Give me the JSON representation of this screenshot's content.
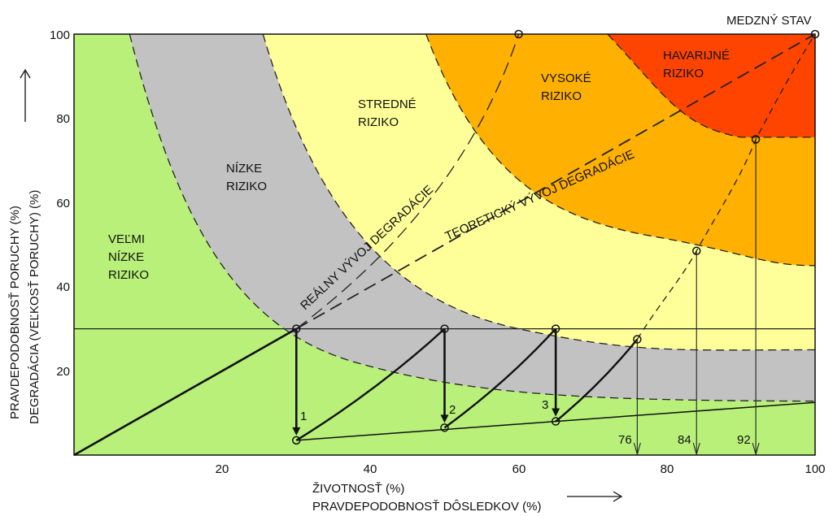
{
  "chart_data": {
    "type": "risk-matrix-diagram",
    "x_axis": {
      "title_line1": "ŽIVOTNOSŤ (%)",
      "title_line2": "PRAVDEPODOBNOSŤ DÔSLEDKOV (%)",
      "range": [
        0,
        100
      ],
      "ticks": [
        "20",
        "40",
        "60",
        "80",
        "100"
      ]
    },
    "y_axis": {
      "title_line1": "PRAVDEPODOBNOSŤ PORUCHY (%)",
      "title_line2": "DEGRADÁCIA (VEĽKOSŤ PORUCHY) (%)",
      "range": [
        0,
        100
      ],
      "ticks": [
        "20",
        "40",
        "60",
        "80",
        "100"
      ]
    },
    "zones": [
      {
        "label_line1": "VEĽMI",
        "label_line2": "NÍZKE",
        "label_line3": "RIZIKO",
        "color": "#b8f07a"
      },
      {
        "label_line1": "NÍZKE",
        "label_line2": "RIZIKO",
        "color": "#c2c2c2"
      },
      {
        "label_line1": "STREDNÉ",
        "label_line2": "RIZIKO",
        "color": "#ffff99"
      },
      {
        "label_line1": "VYSOKÉ",
        "label_line2": "RIZIKO",
        "color": "#ffb000"
      },
      {
        "label_line1": "HAVARIJNÉ",
        "label_line2": "RIZIKO",
        "color": "#ff4400"
      }
    ],
    "corner_label": "MEDZNÝ STAV",
    "real_degradation_label": "REÁLNY VÝVOJ DEGRADÁCIE",
    "theoretical_degradation_label": "TEORETICKÝ VÝVOJ DEGRADÁCIE",
    "threshold_line_y": 30,
    "maintenance_points": [
      {
        "label": "1",
        "x": 30,
        "from_y": 30,
        "to_y": 3.5
      },
      {
        "label": "2",
        "x": 50,
        "from_y": 30,
        "to_y": 6.5
      },
      {
        "label": "3",
        "x": 65,
        "from_y": 30,
        "to_y": 8
      }
    ],
    "projected_points": [
      {
        "x": 76,
        "y": 27.5,
        "label": "76"
      },
      {
        "x": 84,
        "y": 48.5,
        "label": "84"
      },
      {
        "x": 92,
        "y": 75,
        "label": "92"
      }
    ],
    "markers": [
      {
        "x": 60,
        "y": 100
      },
      {
        "x": 100,
        "y": 100
      }
    ]
  }
}
